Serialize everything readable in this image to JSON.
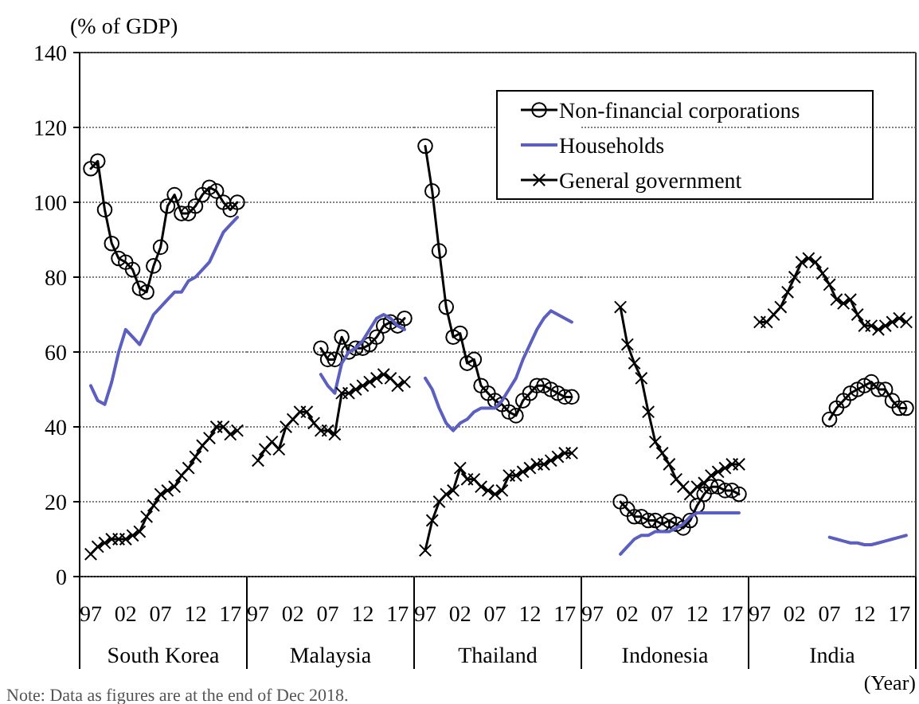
{
  "chart_data": [
    {
      "type": "line",
      "xlabel": "South Korea",
      "ylabel": "(% of GDP)",
      "annotations": [
        "Note: Data as figures are at the end of Dec 2018."
      ],
      "categories": [
        "97",
        null,
        null,
        null,
        null,
        "02",
        null,
        null,
        null,
        null,
        "07",
        null,
        null,
        null,
        null,
        "12",
        null,
        null,
        null,
        null,
        "17",
        null
      ],
      "ylim": [
        0,
        140
      ],
      "yticks": [
        0,
        20,
        40,
        60,
        80,
        100,
        120,
        140
      ],
      "grid": "y",
      "series": [
        {
          "color": "#000000",
          "marker": "circle",
          "values": [
            109,
            111,
            98,
            89,
            85,
            84,
            82,
            77,
            76,
            83,
            88,
            99,
            102,
            97,
            97,
            99,
            102,
            104,
            103,
            100,
            98,
            100
          ]
        },
        {
          "color": "#5b5fbf",
          "marker": "none",
          "values": [
            51,
            47,
            46,
            52,
            60,
            66,
            64,
            62,
            66,
            70,
            72,
            74,
            76,
            76,
            79,
            80,
            82,
            84,
            88,
            92,
            94,
            96
          ]
        },
        {
          "color": "#000000",
          "marker": "cross",
          "values": [
            6,
            8,
            9,
            10,
            10,
            10,
            11,
            12,
            16,
            19,
            22,
            23,
            24,
            27,
            29,
            32,
            35,
            37,
            40,
            40,
            38,
            39
          ]
        }
      ]
    },
    {
      "type": "line",
      "xlabel": "Malaysia",
      "categories": [
        "97",
        null,
        null,
        null,
        null,
        "02",
        null,
        null,
        null,
        null,
        "07",
        null,
        null,
        null,
        null,
        "12",
        null,
        null,
        null,
        null,
        "17",
        null
      ],
      "ylim": [
        0,
        140
      ],
      "yticks": [
        0,
        20,
        40,
        60,
        80,
        100,
        120,
        140
      ],
      "grid": "y",
      "tick_labels": "x",
      "series": [
        {
          "color": "#000000",
          "marker": "circle",
          "values": [
            null,
            null,
            null,
            null,
            null,
            null,
            null,
            null,
            null,
            61,
            58,
            58,
            64,
            60,
            61,
            61,
            62,
            64,
            67,
            68,
            67,
            69
          ]
        },
        {
          "color": "#5b5fbf",
          "marker": "none",
          "values": [
            null,
            null,
            null,
            null,
            null,
            null,
            null,
            null,
            null,
            54,
            51,
            49,
            57,
            60,
            61,
            63,
            66,
            69,
            70,
            69,
            67,
            66
          ]
        },
        {
          "color": "#000000",
          "marker": "cross",
          "values": [
            31,
            34,
            36,
            34,
            40,
            42,
            44,
            44,
            41,
            39,
            39,
            38,
            49,
            49,
            50,
            51,
            52,
            53,
            54,
            53,
            51,
            52
          ]
        }
      ]
    },
    {
      "type": "line",
      "xlabel": "Thailand",
      "legend": "top right",
      "categories": [
        "97",
        null,
        null,
        null,
        null,
        "02",
        null,
        null,
        null,
        null,
        "07",
        null,
        null,
        null,
        null,
        "12",
        null,
        null,
        null,
        null,
        "17",
        null
      ],
      "ylim": [
        0,
        140
      ],
      "yticks": [
        0,
        20,
        40,
        60,
        80,
        100,
        120,
        140
      ],
      "grid": "y",
      "tick_labels": "x",
      "series": [
        {
          "name": "Non-financial corporations",
          "color": "#000000",
          "marker": "circle",
          "values": [
            115,
            103,
            87,
            72,
            64,
            65,
            57,
            58,
            51,
            49,
            47,
            46,
            44,
            43,
            47,
            49,
            51,
            51,
            50,
            49,
            48,
            48
          ]
        },
        {
          "name": "Households",
          "color": "#5b5fbf",
          "marker": "none",
          "values": [
            53,
            50,
            45,
            41,
            39,
            41,
            42,
            44,
            45,
            45,
            45,
            47,
            50,
            53,
            58,
            62,
            66,
            69,
            71,
            70,
            69,
            68
          ]
        },
        {
          "name": "General government",
          "color": "#000000",
          "marker": "cross",
          "values": [
            7,
            15,
            20,
            22,
            23,
            29,
            26,
            26,
            24,
            23,
            22,
            23,
            27,
            27,
            28,
            29,
            30,
            30,
            31,
            32,
            33,
            33
          ]
        }
      ]
    },
    {
      "type": "line",
      "xlabel": "Indonesia",
      "categories": [
        "97",
        null,
        null,
        null,
        null,
        "02",
        null,
        null,
        null,
        null,
        "07",
        null,
        null,
        null,
        null,
        "12",
        null,
        null,
        null,
        null,
        "17",
        null
      ],
      "ylim": [
        0,
        140
      ],
      "yticks": [
        0,
        20,
        40,
        60,
        80,
        100,
        120,
        140
      ],
      "grid": "y",
      "tick_labels": "x",
      "series": [
        {
          "color": "#000000",
          "marker": "circle",
          "values": [
            null,
            null,
            null,
            null,
            20,
            18,
            16,
            16,
            15,
            15,
            14,
            15,
            14,
            13,
            15,
            19,
            22,
            24,
            24,
            23,
            23,
            22
          ]
        },
        {
          "color": "#5b5fbf",
          "marker": "none",
          "values": [
            null,
            null,
            null,
            null,
            6,
            8,
            10,
            11,
            11,
            12,
            12,
            12,
            13,
            14,
            16,
            17,
            17,
            17,
            17,
            17,
            17,
            17
          ]
        },
        {
          "color": "#000000",
          "marker": "cross",
          "values": [
            null,
            null,
            null,
            null,
            72,
            62,
            57,
            53,
            44,
            36,
            33,
            30,
            26,
            24,
            22,
            24,
            25,
            27,
            28,
            29,
            30,
            30
          ]
        }
      ]
    },
    {
      "type": "line",
      "xlabel": "India",
      "annotations": [
        "(Year)"
      ],
      "categories": [
        "97",
        null,
        null,
        null,
        null,
        "02",
        null,
        null,
        null,
        null,
        "07",
        null,
        null,
        null,
        null,
        "12",
        null,
        null,
        null,
        null,
        "17",
        null
      ],
      "ylim": [
        0,
        140
      ],
      "yticks": [
        0,
        20,
        40,
        60,
        80,
        100,
        120,
        140
      ],
      "grid": "y",
      "tick_labels": "x",
      "series": [
        {
          "color": "#000000",
          "marker": "circle",
          "values": [
            null,
            null,
            null,
            null,
            null,
            null,
            null,
            null,
            null,
            null,
            42,
            45,
            47,
            49,
            50,
            51,
            52,
            50,
            50,
            47,
            45,
            45
          ]
        },
        {
          "color": "#5b5fbf",
          "marker": "none",
          "values": [
            null,
            null,
            null,
            null,
            null,
            null,
            null,
            null,
            null,
            null,
            10.5,
            10,
            9.5,
            9,
            9,
            8.5,
            8.5,
            9,
            9.5,
            10,
            10.5,
            11
          ]
        },
        {
          "color": "#000000",
          "marker": "cross",
          "values": [
            68,
            68,
            70,
            72,
            76,
            80,
            84,
            85,
            84,
            81,
            78,
            74,
            73,
            74,
            70,
            67,
            67,
            66,
            67,
            68,
            69,
            68
          ]
        }
      ]
    }
  ]
}
